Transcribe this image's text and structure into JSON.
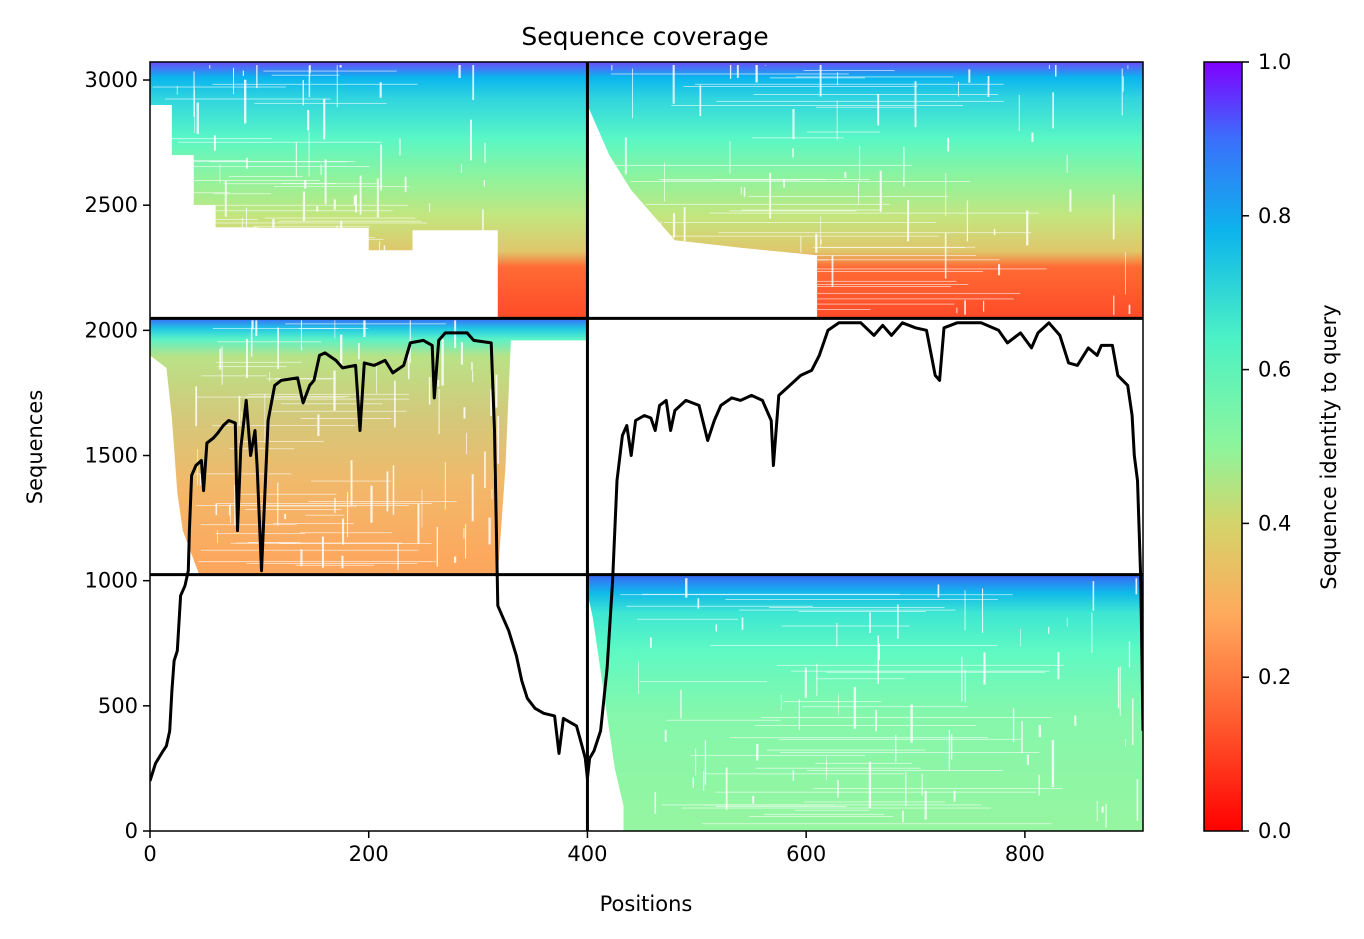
{
  "chart_data": {
    "type": "heatmap",
    "title": "Sequence coverage",
    "xlabel": "Positions",
    "ylabel": "Sequences",
    "xlim": [
      0,
      908
    ],
    "ylim": [
      0,
      3072
    ],
    "xticks": [
      0,
      200,
      400,
      600,
      800
    ],
    "yticks": [
      0,
      500,
      1000,
      1500,
      2000,
      2500,
      3000
    ],
    "colorbar": {
      "label": "Sequence identity to query",
      "ticks": [
        "0.0",
        "0.2",
        "0.4",
        "0.6",
        "0.8",
        "1.0"
      ],
      "range": [
        0,
        1
      ],
      "colormap": "rainbow_r",
      "colors": [
        "#ff0000",
        "#ff7f3d",
        "#d4d46a",
        "#8df59c",
        "#4cf2c4",
        "#0cb4ec",
        "#3b6ffb",
        "#8000ff"
      ]
    },
    "grid_lines": {
      "vertical_x": 400,
      "horizontal_y": [
        1024,
        2048
      ]
    },
    "blocks": [
      {
        "region": "top-left",
        "x": [
          0,
          400
        ],
        "y": [
          2048,
          3072
        ],
        "identity_range": [
          0.1,
          0.95
        ]
      },
      {
        "region": "top-right",
        "x": [
          400,
          908
        ],
        "y": [
          2048,
          3072
        ],
        "identity_range": [
          0.1,
          0.95
        ]
      },
      {
        "region": "middle-left",
        "x": [
          0,
          400
        ],
        "y": [
          1024,
          2048
        ],
        "identity_range": [
          0.2,
          0.85
        ]
      },
      {
        "region": "bottom-right",
        "x": [
          400,
          908
        ],
        "y": [
          0,
          1024
        ],
        "identity_range": [
          0.45,
          0.85
        ]
      }
    ],
    "coverage_line": {
      "color": "#000000",
      "points": [
        [
          0,
          200
        ],
        [
          5,
          270
        ],
        [
          12,
          320
        ],
        [
          15,
          340
        ],
        [
          18,
          400
        ],
        [
          20,
          560
        ],
        [
          22,
          680
        ],
        [
          25,
          720
        ],
        [
          28,
          940
        ],
        [
          32,
          980
        ],
        [
          35,
          1040
        ],
        [
          36,
          1200
        ],
        [
          38,
          1420
        ],
        [
          42,
          1460
        ],
        [
          47,
          1480
        ],
        [
          49,
          1360
        ],
        [
          52,
          1550
        ],
        [
          58,
          1570
        ],
        [
          62,
          1590
        ],
        [
          67,
          1620
        ],
        [
          72,
          1640
        ],
        [
          78,
          1630
        ],
        [
          80,
          1200
        ],
        [
          83,
          1530
        ],
        [
          88,
          1720
        ],
        [
          92,
          1500
        ],
        [
          96,
          1600
        ],
        [
          98,
          1450
        ],
        [
          102,
          1040
        ],
        [
          108,
          1640
        ],
        [
          114,
          1780
        ],
        [
          120,
          1800
        ],
        [
          135,
          1810
        ],
        [
          140,
          1710
        ],
        [
          146,
          1780
        ],
        [
          150,
          1800
        ],
        [
          155,
          1900
        ],
        [
          160,
          1910
        ],
        [
          170,
          1880
        ],
        [
          176,
          1850
        ],
        [
          188,
          1860
        ],
        [
          192,
          1600
        ],
        [
          196,
          1870
        ],
        [
          205,
          1860
        ],
        [
          215,
          1880
        ],
        [
          222,
          1830
        ],
        [
          232,
          1860
        ],
        [
          238,
          1950
        ],
        [
          250,
          1960
        ],
        [
          258,
          1940
        ],
        [
          260,
          1730
        ],
        [
          264,
          1960
        ],
        [
          270,
          1990
        ],
        [
          290,
          1990
        ],
        [
          296,
          1960
        ],
        [
          312,
          1950
        ],
        [
          315,
          1600
        ],
        [
          318,
          900
        ],
        [
          322,
          860
        ],
        [
          328,
          800
        ],
        [
          335,
          700
        ],
        [
          340,
          600
        ],
        [
          345,
          530
        ],
        [
          352,
          490
        ],
        [
          360,
          470
        ],
        [
          370,
          460
        ],
        [
          374,
          310
        ],
        [
          378,
          450
        ],
        [
          390,
          420
        ],
        [
          395,
          340
        ],
        [
          398,
          290
        ],
        [
          400,
          210
        ],
        [
          402,
          290
        ],
        [
          406,
          320
        ],
        [
          412,
          400
        ],
        [
          418,
          650
        ],
        [
          423,
          1000
        ],
        [
          427,
          1400
        ],
        [
          432,
          1580
        ],
        [
          436,
          1620
        ],
        [
          440,
          1500
        ],
        [
          444,
          1640
        ],
        [
          452,
          1660
        ],
        [
          458,
          1650
        ],
        [
          462,
          1600
        ],
        [
          466,
          1700
        ],
        [
          472,
          1720
        ],
        [
          476,
          1600
        ],
        [
          480,
          1680
        ],
        [
          490,
          1720
        ],
        [
          502,
          1700
        ],
        [
          510,
          1560
        ],
        [
          516,
          1640
        ],
        [
          522,
          1700
        ],
        [
          532,
          1730
        ],
        [
          540,
          1720
        ],
        [
          550,
          1740
        ],
        [
          560,
          1720
        ],
        [
          568,
          1640
        ],
        [
          570,
          1460
        ],
        [
          575,
          1740
        ],
        [
          585,
          1780
        ],
        [
          595,
          1820
        ],
        [
          605,
          1840
        ],
        [
          612,
          1900
        ],
        [
          620,
          2000
        ],
        [
          630,
          2030
        ],
        [
          650,
          2030
        ],
        [
          662,
          1980
        ],
        [
          670,
          2020
        ],
        [
          678,
          1980
        ],
        [
          688,
          2030
        ],
        [
          700,
          2010
        ],
        [
          710,
          2000
        ],
        [
          718,
          1820
        ],
        [
          722,
          1800
        ],
        [
          726,
          2010
        ],
        [
          738,
          2030
        ],
        [
          760,
          2030
        ],
        [
          776,
          2000
        ],
        [
          784,
          1950
        ],
        [
          796,
          1990
        ],
        [
          806,
          1930
        ],
        [
          812,
          1990
        ],
        [
          822,
          2030
        ],
        [
          832,
          1980
        ],
        [
          840,
          1870
        ],
        [
          848,
          1860
        ],
        [
          858,
          1930
        ],
        [
          866,
          1900
        ],
        [
          870,
          1940
        ],
        [
          880,
          1940
        ],
        [
          885,
          1820
        ],
        [
          894,
          1780
        ],
        [
          898,
          1660
        ],
        [
          900,
          1500
        ],
        [
          903,
          1400
        ],
        [
          906,
          1000
        ],
        [
          908,
          400
        ]
      ]
    }
  }
}
